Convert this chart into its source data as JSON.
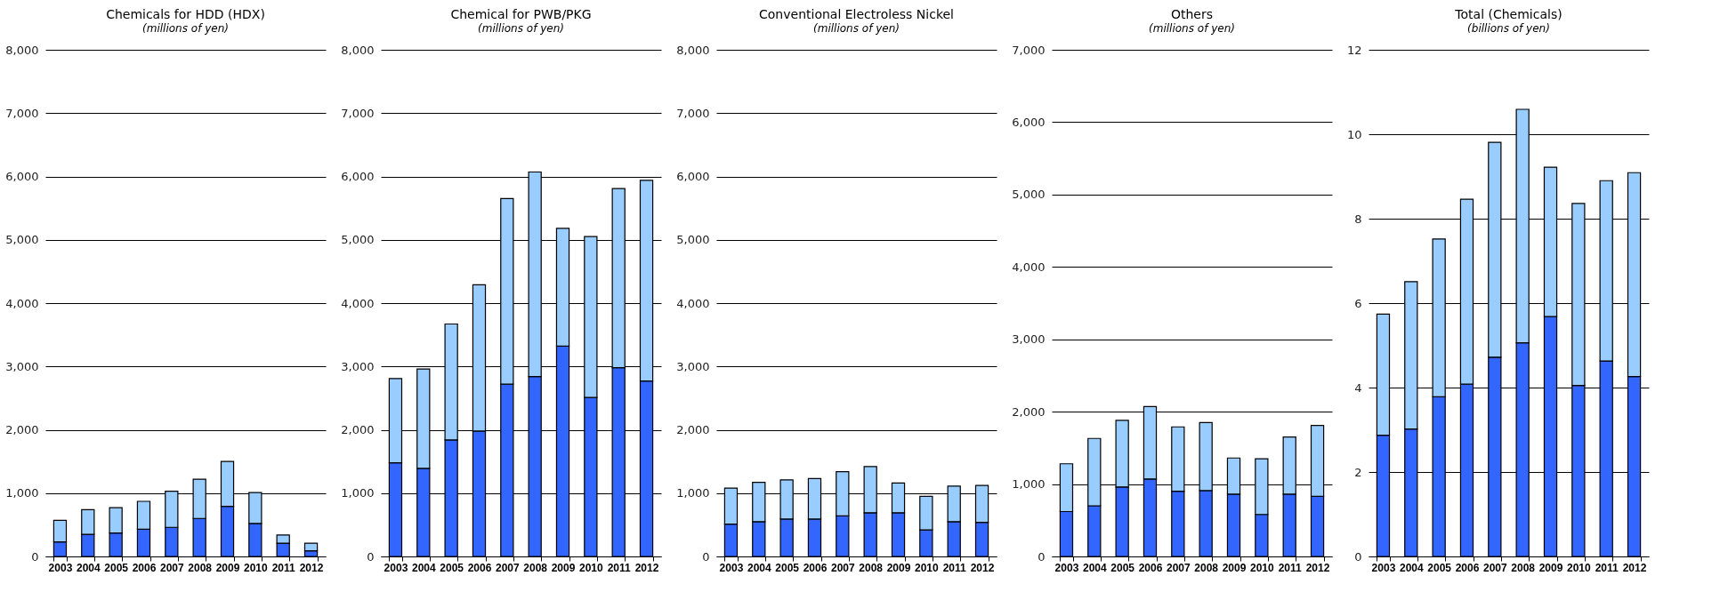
{
  "chart_data": [
    {
      "type": "bar",
      "stacked": true,
      "title": "Chemicals for HDD (HDX)",
      "subtitle": "(millions of yen)",
      "grid": "y",
      "categories": [
        "2003",
        "2004",
        "2005",
        "2006",
        "2007",
        "2008",
        "2009",
        "2010",
        "2011",
        "2012"
      ],
      "series": [
        {
          "color": "#3366ff",
          "values": [
            230,
            350,
            370,
            430,
            460,
            600,
            790,
            520,
            210,
            90
          ]
        },
        {
          "color": "#99ccff",
          "values": [
            340,
            390,
            400,
            440,
            570,
            620,
            710,
            490,
            130,
            120
          ]
        }
      ],
      "ylim": [
        0,
        8000
      ],
      "yticks": [
        0,
        {
          "value": 1000,
          "label": "1,000"
        },
        {
          "value": 2000,
          "label": "2,000"
        },
        {
          "value": 3000,
          "label": "3,000"
        },
        {
          "value": 4000,
          "label": "4,000"
        },
        {
          "value": 5000,
          "label": "5,000"
        },
        {
          "value": 6000,
          "label": "6,000"
        },
        {
          "value": 7000,
          "label": "7,000"
        },
        {
          "value": 8000,
          "label": "8,000"
        }
      ]
    },
    {
      "type": "bar",
      "stacked": true,
      "title": "Chemical for PWB/PKG",
      "subtitle": "(millions of yen)",
      "grid": "y",
      "categories": [
        "2003",
        "2004",
        "2005",
        "2006",
        "2007",
        "2008",
        "2009",
        "2010",
        "2011",
        "2012"
      ],
      "series": [
        {
          "color": "#3366ff",
          "values": [
            1480,
            1390,
            1840,
            1980,
            2720,
            2840,
            3320,
            2510,
            2980,
            2770
          ]
        },
        {
          "color": "#99ccff",
          "values": [
            1330,
            1570,
            1830,
            2310,
            2930,
            3230,
            1860,
            2540,
            2830,
            3170
          ]
        }
      ],
      "ylim": [
        0,
        8000
      ],
      "yticks": [
        0,
        {
          "value": 1000,
          "label": "1,000"
        },
        {
          "value": 2000,
          "label": "2,000"
        },
        {
          "value": 3000,
          "label": "3,000"
        },
        {
          "value": 4000,
          "label": "4,000"
        },
        {
          "value": 5000,
          "label": "5,000"
        },
        {
          "value": 6000,
          "label": "6,000"
        },
        {
          "value": 7000,
          "label": "7,000"
        },
        {
          "value": 8000,
          "label": "8,000"
        }
      ]
    },
    {
      "type": "bar",
      "stacked": true,
      "title": "Conventional Electroless Nickel",
      "subtitle": "(millions of yen)",
      "grid": "y",
      "categories": [
        "2003",
        "2004",
        "2005",
        "2006",
        "2007",
        "2008",
        "2009",
        "2010",
        "2011",
        "2012"
      ],
      "series": [
        {
          "color": "#3366ff",
          "values": [
            510,
            550,
            590,
            590,
            640,
            690,
            690,
            420,
            550,
            540
          ]
        },
        {
          "color": "#99ccff",
          "values": [
            570,
            620,
            620,
            640,
            700,
            730,
            470,
            530,
            560,
            580
          ]
        }
      ],
      "ylim": [
        0,
        8000
      ],
      "yticks": [
        0,
        {
          "value": 1000,
          "label": "1,000"
        },
        {
          "value": 2000,
          "label": "2,000"
        },
        {
          "value": 3000,
          "label": "3,000"
        },
        {
          "value": 4000,
          "label": "4,000"
        },
        {
          "value": 5000,
          "label": "5,000"
        },
        {
          "value": 6000,
          "label": "6,000"
        },
        {
          "value": 7000,
          "label": "7,000"
        },
        {
          "value": 8000,
          "label": "8,000"
        }
      ]
    },
    {
      "type": "bar",
      "stacked": true,
      "title": "Others",
      "subtitle": "(millions of yen)",
      "grid": "y",
      "categories": [
        "2003",
        "2004",
        "2005",
        "2006",
        "2007",
        "2008",
        "2009",
        "2010",
        "2011",
        "2012"
      ],
      "series": [
        {
          "color": "#3366ff",
          "values": [
            620,
            700,
            960,
            1070,
            900,
            910,
            860,
            580,
            860,
            830
          ]
        },
        {
          "color": "#99ccff",
          "values": [
            660,
            930,
            920,
            1000,
            890,
            940,
            500,
            770,
            790,
            980
          ]
        }
      ],
      "ylim": [
        0,
        7000
      ],
      "yticks": [
        0,
        {
          "value": 1000,
          "label": "1,000"
        },
        {
          "value": 2000,
          "label": "2,000"
        },
        {
          "value": 3000,
          "label": "3,000"
        },
        {
          "value": 4000,
          "label": "4,000"
        },
        {
          "value": 5000,
          "label": "5,000"
        },
        {
          "value": 6000,
          "label": "6,000"
        },
        {
          "value": 7000,
          "label": "7,000"
        }
      ]
    },
    {
      "type": "bar",
      "stacked": true,
      "title": "Total (Chemicals)",
      "subtitle": "(billions of yen)",
      "grid": "y",
      "categories": [
        "2003",
        "2004",
        "2005",
        "2006",
        "2007",
        "2008",
        "2009",
        "2010",
        "2011",
        "2012"
      ],
      "series": [
        {
          "color": "#3366ff",
          "values": [
            2.87,
            3.02,
            3.78,
            4.08,
            4.72,
            5.06,
            5.68,
            4.05,
            4.63,
            4.26
          ]
        },
        {
          "color": "#99ccff",
          "values": [
            2.87,
            3.49,
            3.74,
            4.38,
            5.09,
            5.53,
            3.54,
            4.31,
            4.27,
            4.83
          ]
        }
      ],
      "ylim": [
        0,
        12
      ],
      "yticks": [
        0,
        2,
        4,
        6,
        8,
        10,
        12
      ]
    }
  ]
}
